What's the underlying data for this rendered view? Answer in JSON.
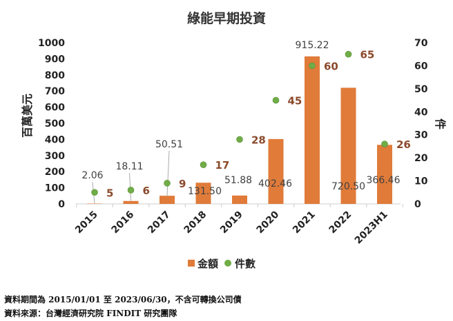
{
  "chart_data": {
    "type": "bar+scatter",
    "title": "綠能早期投資",
    "categories": [
      "2015",
      "2016",
      "2017",
      "2018",
      "2019",
      "2020",
      "2021",
      "2022",
      "2023H1"
    ],
    "series": [
      {
        "name": "金額",
        "type": "bar",
        "axis": "left",
        "color": "#E07B39",
        "values": [
          2.06,
          18.11,
          50.51,
          131.5,
          51.88,
          402.46,
          915.22,
          720.5,
          366.46
        ],
        "labels": [
          "2.06",
          "18.11",
          "50.51",
          "131.50",
          "51.88",
          "402.46",
          "915.22",
          "720.50",
          "366.46"
        ]
      },
      {
        "name": "件數",
        "type": "scatter",
        "axis": "right",
        "color": "#70AD47",
        "values": [
          5,
          6,
          9,
          17,
          28,
          45,
          60,
          65,
          26
        ]
      }
    ],
    "ylabel": "百萬美元",
    "y2label": "件",
    "ylim": [
      0,
      1000
    ],
    "yticks": [
      0,
      100,
      200,
      300,
      400,
      500,
      600,
      700,
      800,
      900,
      1000
    ],
    "y2lim": [
      0,
      70
    ],
    "y2ticks": [
      0,
      10,
      20,
      30,
      40,
      50,
      60,
      70
    ],
    "grid": false,
    "legend": "bottom",
    "count_label_color": "#8B4A2B"
  },
  "footnotes": [
    "資料期間為 2015/01/01 至 2023/06/30，不含可轉換公司債",
    "資料來源：台灣經濟研究院 FINDIT 研究團隊"
  ]
}
